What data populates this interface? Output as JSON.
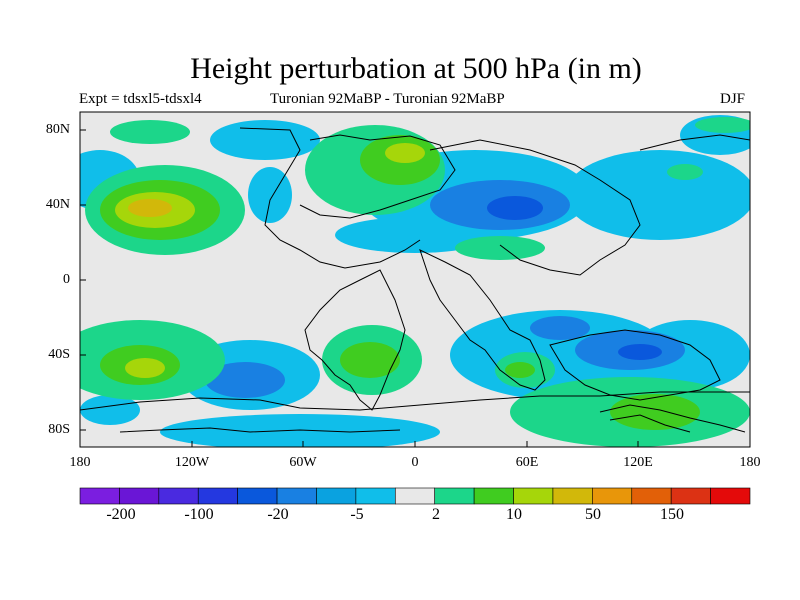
{
  "title": "Height perturbation at 500 hPa (in m)",
  "subtitle_left": "Expt = tdsxl5-tdsxl4",
  "subtitle_center": "Turonian  92MaBP - Turonian  92MaBP",
  "subtitle_right": "DJF",
  "lat_labels": [
    "80N",
    "40N",
    "0",
    "40S",
    "80S"
  ],
  "lon_labels": [
    "180",
    "120W",
    "60W",
    "0",
    "60E",
    "120E",
    "180"
  ],
  "colorbar": {
    "colors": [
      "#7b1ee0",
      "#6a16d6",
      "#4a2ae0",
      "#2438e0",
      "#0a58dc",
      "#1980e2",
      "#0aa2e0",
      "#10beea",
      "#e8e8e8",
      "#1cd68a",
      "#40cc20",
      "#a6d60a",
      "#d2b80a",
      "#e8960a",
      "#e26008",
      "#dc3214",
      "#e40a0a"
    ],
    "labels": [
      "-200",
      "-100",
      "-20",
      "-5",
      "2",
      "10",
      "50",
      "150"
    ]
  }
}
